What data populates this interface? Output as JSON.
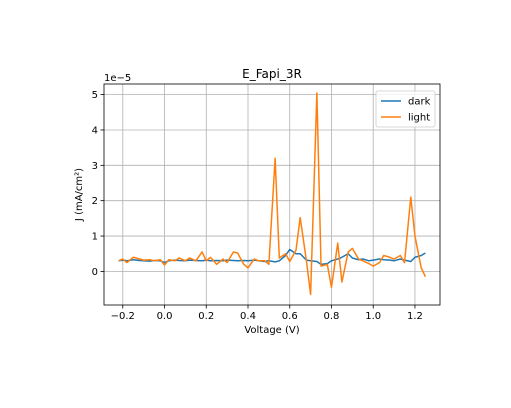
{
  "chart_data": {
    "type": "line",
    "title": "E_Fapi_3R",
    "xlabel": "Voltage (V)",
    "ylabel": "J (mA/cm²)",
    "y_multiplier": "1e−5",
    "xlim": [
      -0.29,
      1.32
    ],
    "ylim": [
      -0.95,
      5.3
    ],
    "xticks": [
      -0.2,
      0.0,
      0.2,
      0.4,
      0.6,
      0.8,
      1.0,
      1.2
    ],
    "xtick_labels": [
      "−0.2",
      "0.0",
      "0.2",
      "0.4",
      "0.6",
      "0.8",
      "1.0",
      "1.2"
    ],
    "yticks": [
      0,
      1,
      2,
      3,
      4,
      5
    ],
    "ytick_labels": [
      "0",
      "1",
      "2",
      "3",
      "4",
      "5"
    ],
    "grid": true,
    "legend_position": "top-right",
    "x": [
      -0.22,
      -0.2,
      -0.18,
      -0.15,
      -0.12,
      -0.1,
      -0.07,
      -0.05,
      -0.02,
      0.0,
      0.02,
      0.05,
      0.07,
      0.1,
      0.12,
      0.15,
      0.18,
      0.2,
      0.22,
      0.25,
      0.28,
      0.3,
      0.33,
      0.35,
      0.38,
      0.4,
      0.43,
      0.45,
      0.48,
      0.5,
      0.53,
      0.55,
      0.58,
      0.6,
      0.63,
      0.65,
      0.68,
      0.7,
      0.73,
      0.75,
      0.78,
      0.8,
      0.83,
      0.85,
      0.88,
      0.9,
      0.93,
      0.95,
      0.98,
      1.0,
      1.03,
      1.05,
      1.08,
      1.1,
      1.13,
      1.15,
      1.18,
      1.2,
      1.23,
      1.25
    ],
    "series": [
      {
        "name": "dark",
        "color": "#1f77b4",
        "values": [
          0.3,
          0.32,
          0.3,
          0.33,
          0.31,
          0.3,
          0.29,
          0.31,
          0.3,
          0.25,
          0.3,
          0.32,
          0.31,
          0.3,
          0.32,
          0.31,
          0.3,
          0.32,
          0.3,
          0.31,
          0.3,
          0.32,
          0.31,
          0.3,
          0.31,
          0.3,
          0.32,
          0.3,
          0.28,
          0.3,
          0.27,
          0.3,
          0.45,
          0.62,
          0.5,
          0.5,
          0.32,
          0.3,
          0.28,
          0.2,
          0.22,
          0.3,
          0.35,
          0.4,
          0.5,
          0.38,
          0.33,
          0.35,
          0.3,
          0.32,
          0.35,
          0.33,
          0.32,
          0.3,
          0.35,
          0.32,
          0.28,
          0.4,
          0.45,
          0.52
        ]
      },
      {
        "name": "light",
        "color": "#ff7f0e",
        "values": [
          0.3,
          0.35,
          0.25,
          0.4,
          0.35,
          0.32,
          0.33,
          0.3,
          0.33,
          0.18,
          0.33,
          0.3,
          0.38,
          0.3,
          0.38,
          0.3,
          0.55,
          0.3,
          0.4,
          0.2,
          0.35,
          0.25,
          0.55,
          0.52,
          0.2,
          0.1,
          0.35,
          0.3,
          0.3,
          0.2,
          3.2,
          0.38,
          0.5,
          0.28,
          0.6,
          1.52,
          0.3,
          -0.65,
          5.05,
          0.15,
          0.2,
          -0.45,
          0.8,
          -0.3,
          0.55,
          0.65,
          0.35,
          0.3,
          0.22,
          0.15,
          0.25,
          0.45,
          0.4,
          0.35,
          0.45,
          0.25,
          2.1,
          1.0,
          0.1,
          -0.15
        ]
      }
    ]
  }
}
